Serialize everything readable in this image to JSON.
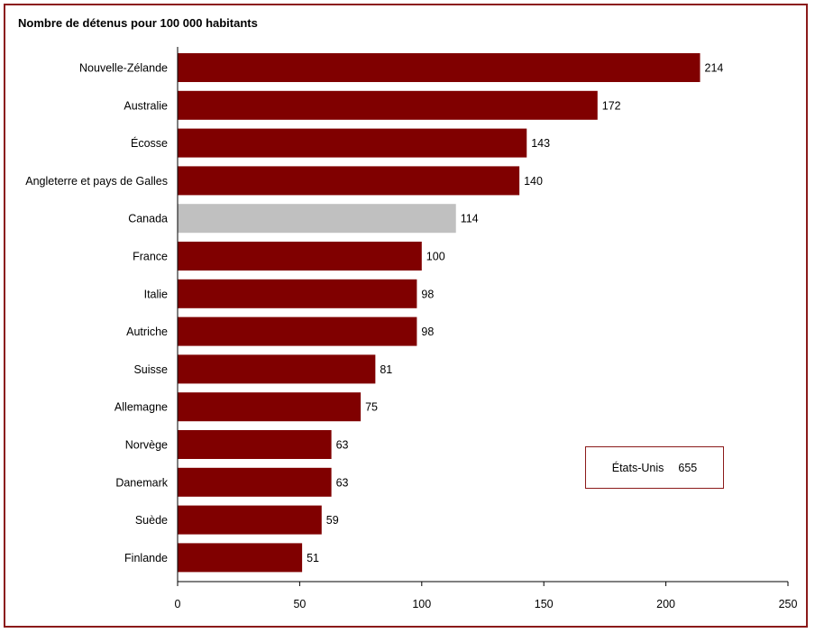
{
  "chart_data": {
    "type": "bar",
    "orientation": "horizontal",
    "title": "Nombre de détenus pour 100 000 habitants",
    "categories": [
      "Nouvelle-Zélande",
      "Australie",
      "Écosse",
      "Angleterre et pays de Galles",
      "Canada",
      "France",
      "Italie",
      "Autriche",
      "Suisse",
      "Allemagne",
      "Norvège",
      "Danemark",
      "Suède",
      "Finlande"
    ],
    "values": [
      214,
      172,
      143,
      140,
      114,
      100,
      98,
      98,
      81,
      75,
      63,
      63,
      59,
      51
    ],
    "highlight_category": "Canada",
    "xlim": [
      0,
      250
    ],
    "xticks": [
      0,
      50,
      100,
      150,
      200,
      250
    ],
    "grid": false,
    "colors": {
      "bar": "#800000",
      "highlight": "#c0c0c0",
      "frame": "#8b1a1a"
    },
    "annotation": {
      "label": "États-Unis",
      "value": "655"
    }
  }
}
